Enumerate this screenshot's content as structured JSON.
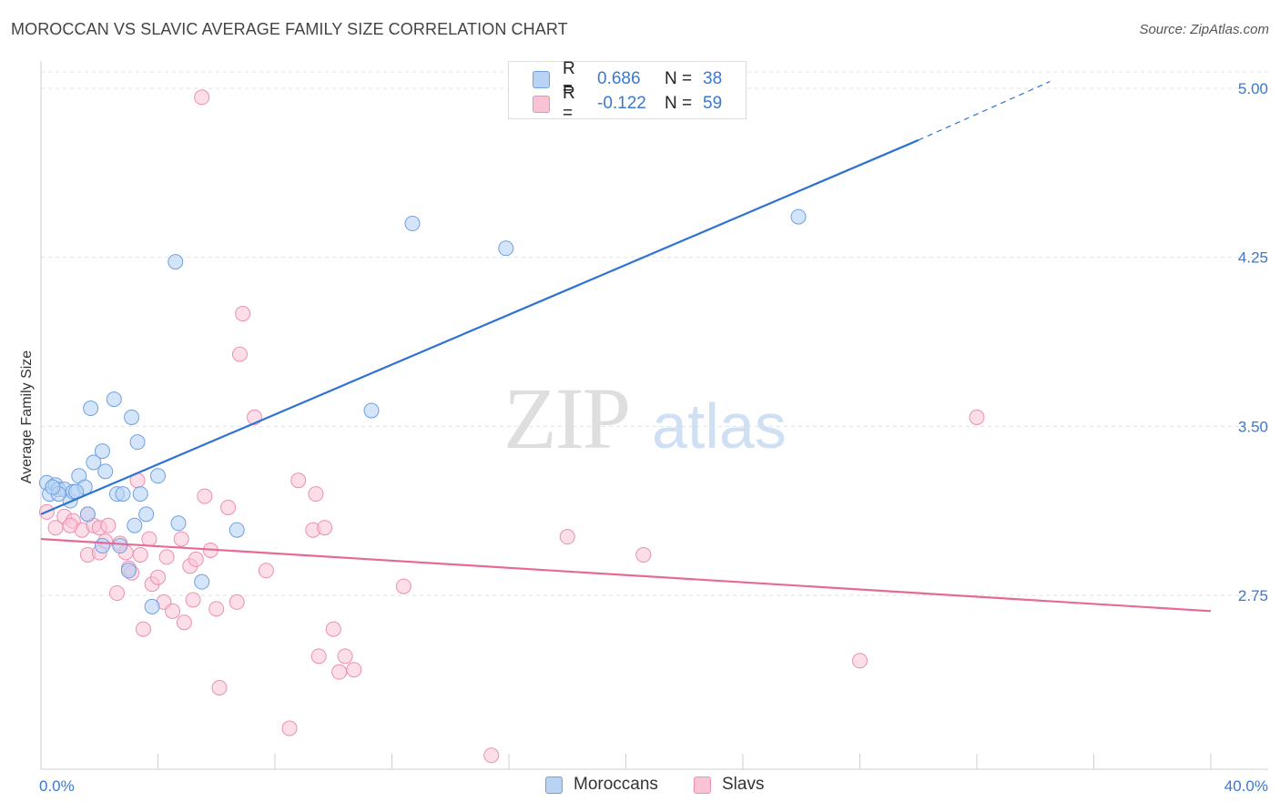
{
  "header": {
    "title": "MOROCCAN VS SLAVIC AVERAGE FAMILY SIZE CORRELATION CHART",
    "source": "Source: ZipAtlas.com"
  },
  "legend": {
    "rows": [
      {
        "r_label": "R =",
        "r_value": "0.686",
        "n_label": "N =",
        "n_value": "38"
      },
      {
        "r_label": "R =",
        "r_value": "-0.122",
        "n_label": "N =",
        "n_value": "59"
      }
    ]
  },
  "watermark": {
    "zip": "ZIP",
    "atlas": "atlas"
  },
  "colors": {
    "moroccan_fill": "#b9d3f5",
    "moroccan_stroke": "#6fa0e0",
    "moroccan_line": "#2f73d0",
    "slav_fill": "#f9c3d5",
    "slav_stroke": "#ec8fb0",
    "slav_line": "#e56a99",
    "tick": "#3b78d0",
    "grid": "#e2e2e2"
  },
  "chart_data": {
    "type": "scatter",
    "title": "MOROCCAN VS SLAVIC AVERAGE FAMILY SIZE CORRELATION CHART",
    "xlabel": "",
    "ylabel": "Average Family Size",
    "xlim": [
      0,
      40
    ],
    "ylim": [
      2.0,
      5.1
    ],
    "x_tick_labels": [
      "0.0%",
      "40.0%"
    ],
    "y_ticks": [
      {
        "value": 2.75,
        "label": "2.75"
      },
      {
        "value": 3.5,
        "label": "3.50"
      },
      {
        "value": 4.25,
        "label": "4.25"
      },
      {
        "value": 5.0,
        "label": "5.00"
      }
    ],
    "series": [
      {
        "name": "Moroccans",
        "trend": {
          "x1": 0,
          "y1": 3.11,
          "x2": 30.0,
          "y2": 4.77,
          "dash_x2": 34.5,
          "dash_y2": 5.03
        },
        "points": [
          [
            0.2,
            3.25
          ],
          [
            0.3,
            3.2
          ],
          [
            0.5,
            3.24
          ],
          [
            0.6,
            3.22
          ],
          [
            0.8,
            3.22
          ],
          [
            1.0,
            3.17
          ],
          [
            1.1,
            3.21
          ],
          [
            1.3,
            3.28
          ],
          [
            1.5,
            3.23
          ],
          [
            1.6,
            3.11
          ],
          [
            1.7,
            3.58
          ],
          [
            1.8,
            3.34
          ],
          [
            2.1,
            3.39
          ],
          [
            2.2,
            3.3
          ],
          [
            2.5,
            3.62
          ],
          [
            2.6,
            3.2
          ],
          [
            2.8,
            3.2
          ],
          [
            3.1,
            3.54
          ],
          [
            3.3,
            3.43
          ],
          [
            3.4,
            3.2
          ],
          [
            3.2,
            3.06
          ],
          [
            3.6,
            3.11
          ],
          [
            4.0,
            3.28
          ],
          [
            2.7,
            2.97
          ],
          [
            2.1,
            2.97
          ],
          [
            3.0,
            2.86
          ],
          [
            3.8,
            2.7
          ],
          [
            4.6,
            4.23
          ],
          [
            4.7,
            3.07
          ],
          [
            5.5,
            2.81
          ],
          [
            6.7,
            3.04
          ],
          [
            11.3,
            3.57
          ],
          [
            12.7,
            4.4
          ],
          [
            15.9,
            4.29
          ],
          [
            25.9,
            4.43
          ],
          [
            0.6,
            3.2
          ],
          [
            1.2,
            3.21
          ],
          [
            0.4,
            3.23
          ]
        ]
      },
      {
        "name": "Slavs",
        "trend": {
          "x1": 0,
          "y1": 3.0,
          "x2": 40.0,
          "y2": 2.68
        },
        "points": [
          [
            0.2,
            3.12
          ],
          [
            0.5,
            3.05
          ],
          [
            0.8,
            3.1
          ],
          [
            1.1,
            3.08
          ],
          [
            1.4,
            3.04
          ],
          [
            1.6,
            3.11
          ],
          [
            1.8,
            3.06
          ],
          [
            2.0,
            3.05
          ],
          [
            1.6,
            2.93
          ],
          [
            2.0,
            2.94
          ],
          [
            2.2,
            2.99
          ],
          [
            2.3,
            3.06
          ],
          [
            2.6,
            2.76
          ],
          [
            2.7,
            2.98
          ],
          [
            2.9,
            2.94
          ],
          [
            3.0,
            2.87
          ],
          [
            3.1,
            2.85
          ],
          [
            3.3,
            3.26
          ],
          [
            3.4,
            2.93
          ],
          [
            3.5,
            2.6
          ],
          [
            3.7,
            3.0
          ],
          [
            3.8,
            2.8
          ],
          [
            4.0,
            2.83
          ],
          [
            4.2,
            2.72
          ],
          [
            4.3,
            2.92
          ],
          [
            4.5,
            2.68
          ],
          [
            4.8,
            3.0
          ],
          [
            4.9,
            2.63
          ],
          [
            5.1,
            2.88
          ],
          [
            5.2,
            2.73
          ],
          [
            5.3,
            2.91
          ],
          [
            5.6,
            3.19
          ],
          [
            5.8,
            2.95
          ],
          [
            6.0,
            2.69
          ],
          [
            6.1,
            2.34
          ],
          [
            6.4,
            3.14
          ],
          [
            6.7,
            2.72
          ],
          [
            6.8,
            3.82
          ],
          [
            6.9,
            4.0
          ],
          [
            7.3,
            3.54
          ],
          [
            7.7,
            2.86
          ],
          [
            5.5,
            4.96
          ],
          [
            8.5,
            2.16
          ],
          [
            8.8,
            3.26
          ],
          [
            9.3,
            3.04
          ],
          [
            9.4,
            3.2
          ],
          [
            9.5,
            2.48
          ],
          [
            9.7,
            3.05
          ],
          [
            10.0,
            2.6
          ],
          [
            10.2,
            2.41
          ],
          [
            10.4,
            2.48
          ],
          [
            10.7,
            2.42
          ],
          [
            12.4,
            2.79
          ],
          [
            15.4,
            2.04
          ],
          [
            18.0,
            3.01
          ],
          [
            20.6,
            2.93
          ],
          [
            28.0,
            2.46
          ],
          [
            32.0,
            3.54
          ],
          [
            1.0,
            3.06
          ]
        ]
      }
    ],
    "legend_labels": [
      "Moroccans",
      "Slavs"
    ]
  }
}
